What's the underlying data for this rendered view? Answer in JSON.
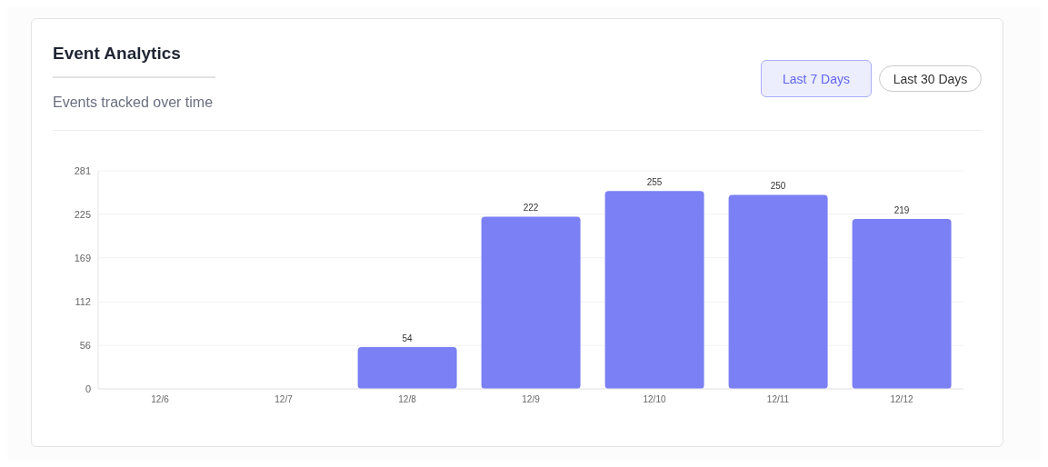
{
  "chart_data": {
    "type": "bar",
    "title": "Event Analytics",
    "subtitle": "Events tracked over time",
    "annotations": [
      "Last 7 Days",
      "Last 30 Days"
    ],
    "categories": [
      "12/6",
      "12/7",
      "12/8",
      "12/9",
      "12/10",
      "12/11",
      "12/12"
    ],
    "values": [
      0,
      0,
      54,
      222,
      255,
      250,
      219
    ],
    "value_labels": [
      null,
      null,
      "54",
      "222",
      "255",
      "250",
      "219"
    ],
    "color": "#7b80f5",
    "ylim": [
      0,
      281
    ],
    "yticks": [
      0,
      56,
      112,
      169,
      225,
      281
    ],
    "grid": "y"
  }
}
